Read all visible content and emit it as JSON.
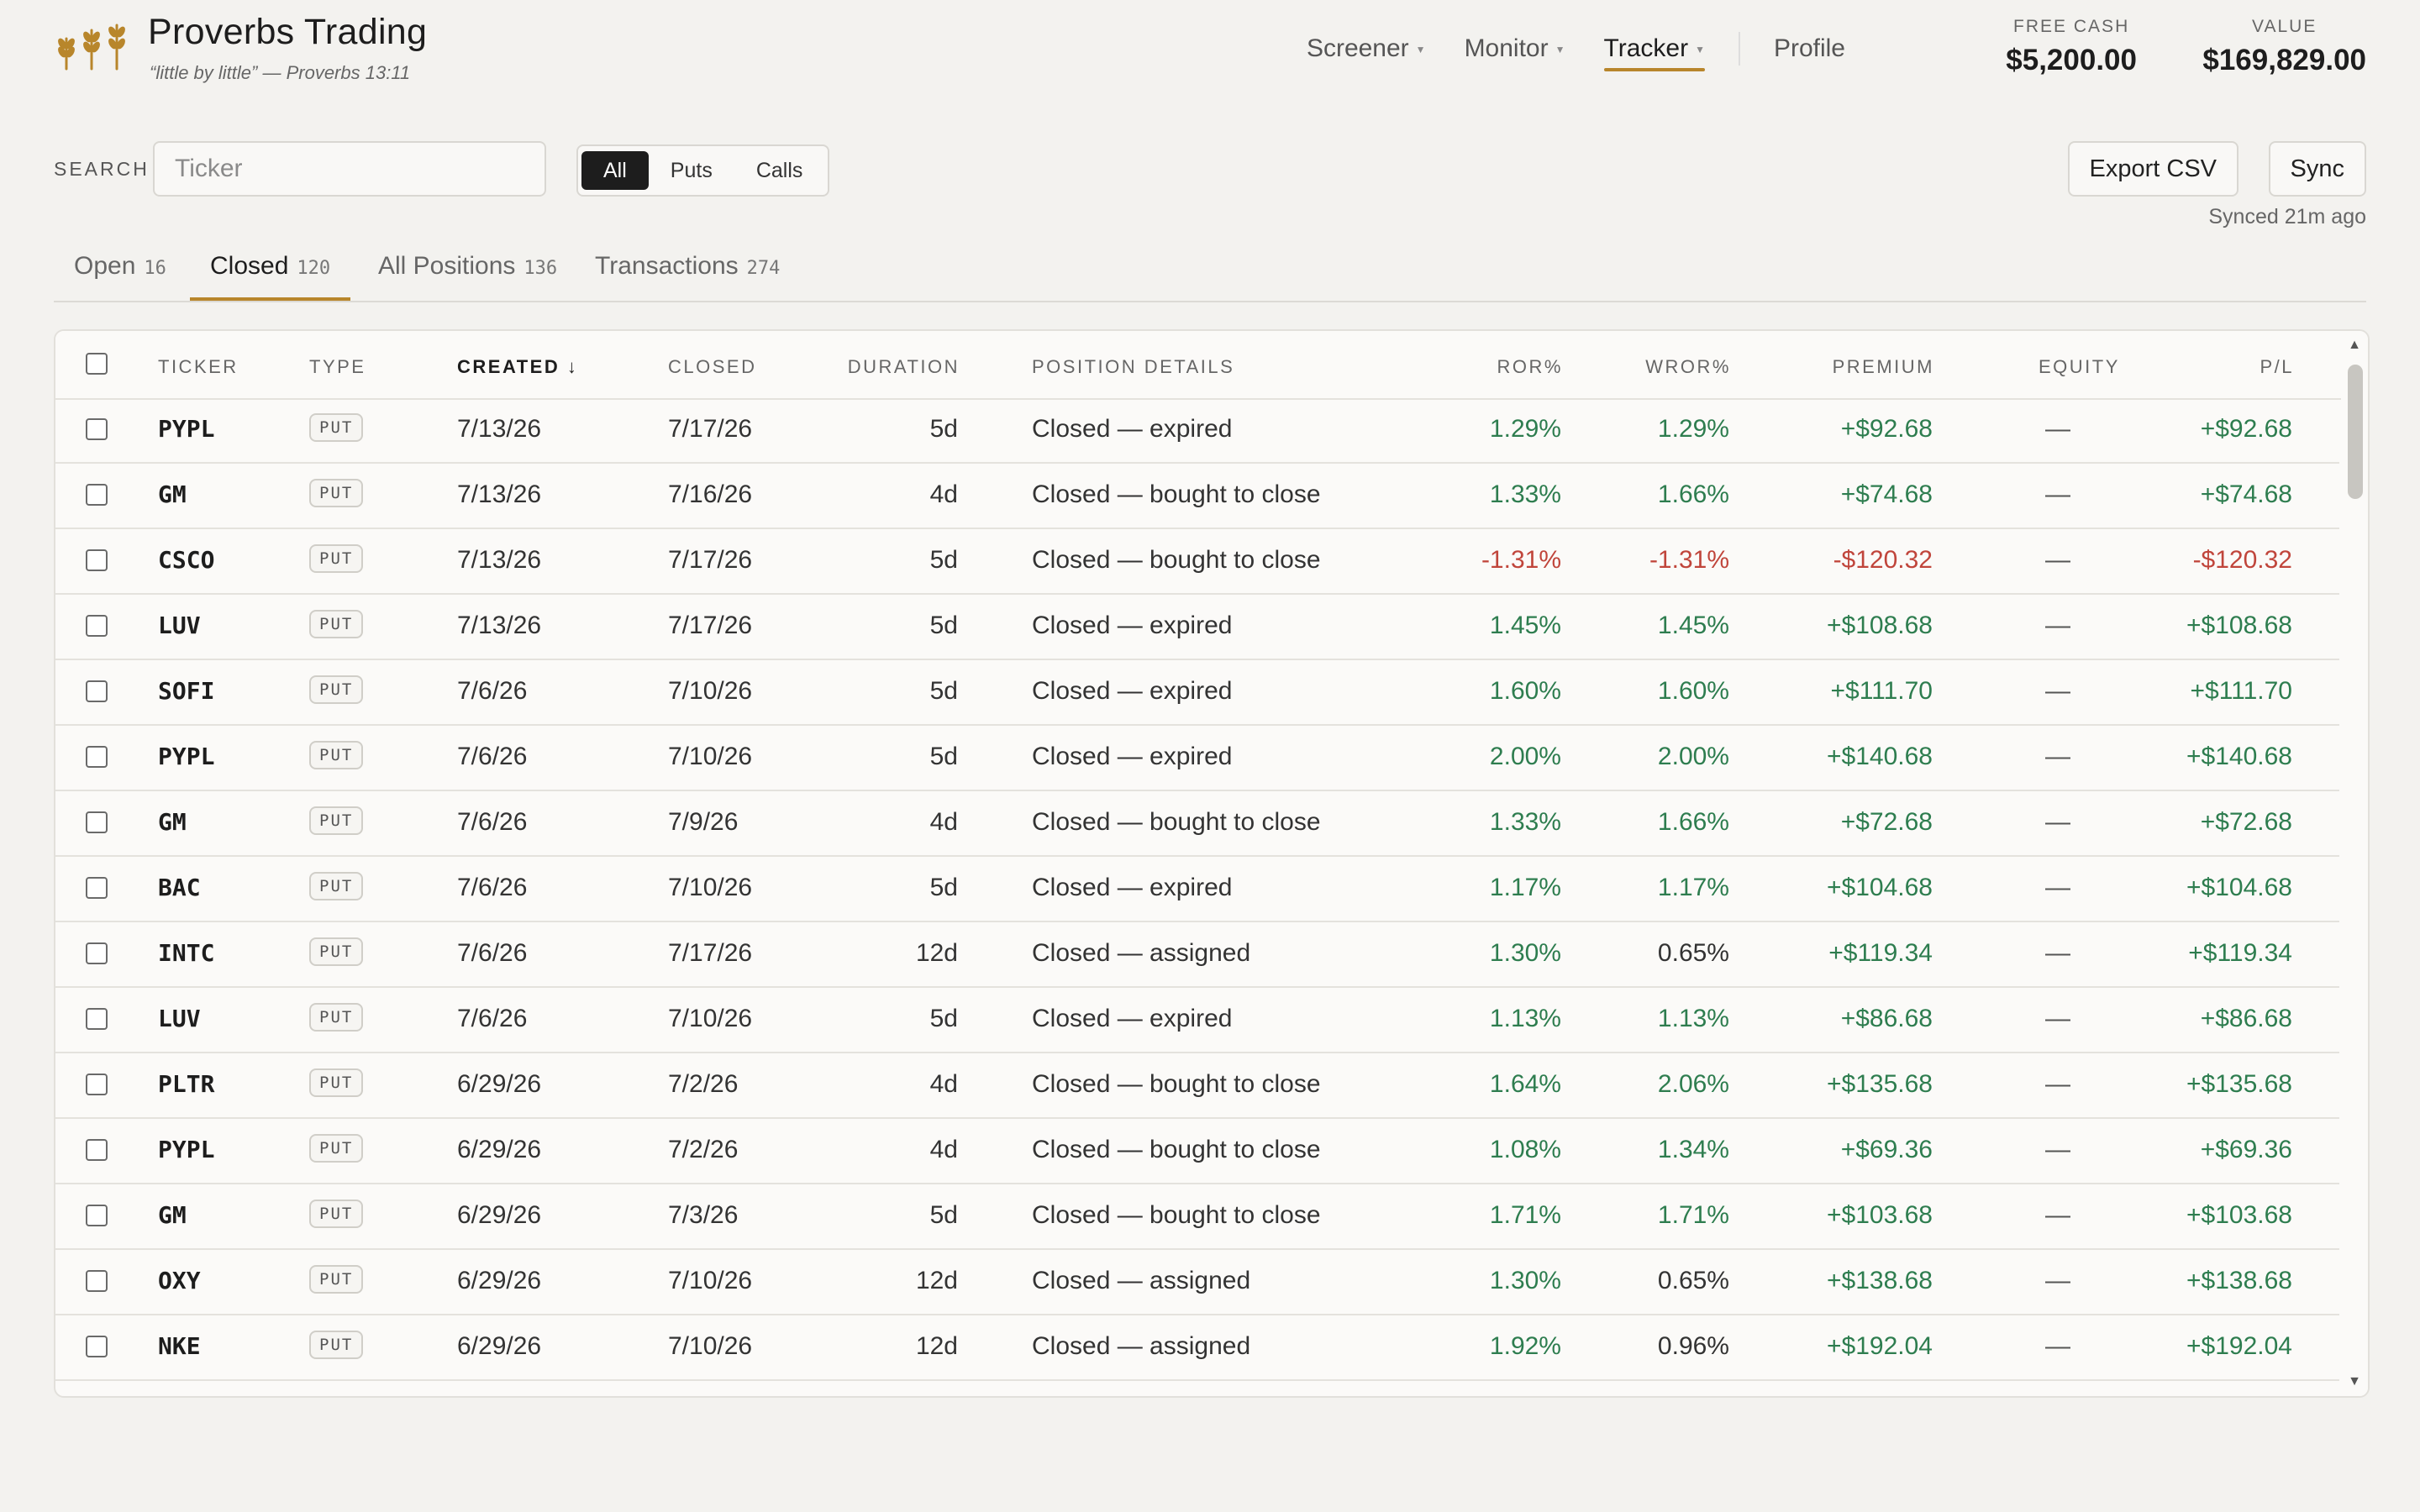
{
  "brand": {
    "title": "Proverbs Trading",
    "subtitle": "“little by little” — Proverbs 13:11"
  },
  "nav": {
    "items": [
      {
        "label": "Screener",
        "active": false
      },
      {
        "label": "Monitor",
        "active": false
      },
      {
        "label": "Tracker",
        "active": true
      }
    ],
    "profile": "Profile"
  },
  "stats": {
    "free_cash_label": "FREE CASH",
    "free_cash": "$5,200.00",
    "value_label": "VALUE",
    "value": "$169,829.00"
  },
  "toolbar": {
    "search_label": "SEARCH",
    "search_placeholder": "Ticker",
    "filters": [
      "All",
      "Puts",
      "Calls"
    ],
    "active_filter": "All",
    "export_label": "Export CSV",
    "sync_label": "Sync",
    "synced_text": "Synced 21m ago"
  },
  "tabs": [
    {
      "label": "Open",
      "count": "16"
    },
    {
      "label": "Closed",
      "count": "120"
    },
    {
      "label": "All Positions",
      "count": "136"
    },
    {
      "label": "Transactions",
      "count": "274"
    }
  ],
  "table": {
    "headers": {
      "ticker": "TICKER",
      "type": "TYPE",
      "created": "CREATED ↓",
      "closed": "CLOSED",
      "duration": "DURATION",
      "details": "POSITION DETAILS",
      "ror": "ROR%",
      "wror": "WROR%",
      "premium": "PREMIUM",
      "equity": "EQUITY",
      "pl": "P/L"
    },
    "rows": [
      {
        "ticker": "PYPL",
        "type": "PUT",
        "created": "7/13/26",
        "closed": "7/17/26",
        "duration": "5d",
        "details": "Closed — expired",
        "ror": "1.29%",
        "wror": "1.29%",
        "premium": "+$92.68",
        "equity": "—",
        "pl": "+$92.68"
      },
      {
        "ticker": "GM",
        "type": "PUT",
        "created": "7/13/26",
        "closed": "7/16/26",
        "duration": "4d",
        "details": "Closed — bought to close",
        "ror": "1.33%",
        "wror": "1.66%",
        "premium": "+$74.68",
        "equity": "—",
        "pl": "+$74.68"
      },
      {
        "ticker": "CSCO",
        "type": "PUT",
        "created": "7/13/26",
        "closed": "7/17/26",
        "duration": "5d",
        "details": "Closed — bought to close",
        "ror": "-1.31%",
        "wror": "-1.31%",
        "premium": "-$120.32",
        "equity": "—",
        "pl": "-$120.32"
      },
      {
        "ticker": "LUV",
        "type": "PUT",
        "created": "7/13/26",
        "closed": "7/17/26",
        "duration": "5d",
        "details": "Closed — expired",
        "ror": "1.45%",
        "wror": "1.45%",
        "premium": "+$108.68",
        "equity": "—",
        "pl": "+$108.68"
      },
      {
        "ticker": "SOFI",
        "type": "PUT",
        "created": "7/6/26",
        "closed": "7/10/26",
        "duration": "5d",
        "details": "Closed — expired",
        "ror": "1.60%",
        "wror": "1.60%",
        "premium": "+$111.70",
        "equity": "—",
        "pl": "+$111.70"
      },
      {
        "ticker": "PYPL",
        "type": "PUT",
        "created": "7/6/26",
        "closed": "7/10/26",
        "duration": "5d",
        "details": "Closed — expired",
        "ror": "2.00%",
        "wror": "2.00%",
        "premium": "+$140.68",
        "equity": "—",
        "pl": "+$140.68"
      },
      {
        "ticker": "GM",
        "type": "PUT",
        "created": "7/6/26",
        "closed": "7/9/26",
        "duration": "4d",
        "details": "Closed — bought to close",
        "ror": "1.33%",
        "wror": "1.66%",
        "premium": "+$72.68",
        "equity": "—",
        "pl": "+$72.68"
      },
      {
        "ticker": "BAC",
        "type": "PUT",
        "created": "7/6/26",
        "closed": "7/10/26",
        "duration": "5d",
        "details": "Closed — expired",
        "ror": "1.17%",
        "wror": "1.17%",
        "premium": "+$104.68",
        "equity": "—",
        "pl": "+$104.68"
      },
      {
        "ticker": "INTC",
        "type": "PUT",
        "created": "7/6/26",
        "closed": "7/17/26",
        "duration": "12d",
        "details": "Closed — assigned",
        "ror": "1.30%",
        "wror": "0.65%",
        "premium": "+$119.34",
        "equity": "—",
        "pl": "+$119.34"
      },
      {
        "ticker": "LUV",
        "type": "PUT",
        "created": "7/6/26",
        "closed": "7/10/26",
        "duration": "5d",
        "details": "Closed — expired",
        "ror": "1.13%",
        "wror": "1.13%",
        "premium": "+$86.68",
        "equity": "—",
        "pl": "+$86.68"
      },
      {
        "ticker": "PLTR",
        "type": "PUT",
        "created": "6/29/26",
        "closed": "7/2/26",
        "duration": "4d",
        "details": "Closed — bought to close",
        "ror": "1.64%",
        "wror": "2.06%",
        "premium": "+$135.68",
        "equity": "—",
        "pl": "+$135.68"
      },
      {
        "ticker": "PYPL",
        "type": "PUT",
        "created": "6/29/26",
        "closed": "7/2/26",
        "duration": "4d",
        "details": "Closed — bought to close",
        "ror": "1.08%",
        "wror": "1.34%",
        "premium": "+$69.36",
        "equity": "—",
        "pl": "+$69.36"
      },
      {
        "ticker": "GM",
        "type": "PUT",
        "created": "6/29/26",
        "closed": "7/3/26",
        "duration": "5d",
        "details": "Closed — bought to close",
        "ror": "1.71%",
        "wror": "1.71%",
        "premium": "+$103.68",
        "equity": "—",
        "pl": "+$103.68"
      },
      {
        "ticker": "OXY",
        "type": "PUT",
        "created": "6/29/26",
        "closed": "7/10/26",
        "duration": "12d",
        "details": "Closed — assigned",
        "ror": "1.30%",
        "wror": "0.65%",
        "premium": "+$138.68",
        "equity": "—",
        "pl": "+$138.68"
      },
      {
        "ticker": "NKE",
        "type": "PUT",
        "created": "6/29/26",
        "closed": "7/10/26",
        "duration": "12d",
        "details": "Closed — assigned",
        "ror": "1.92%",
        "wror": "0.96%",
        "premium": "+$192.04",
        "equity": "—",
        "pl": "+$192.04"
      }
    ]
  },
  "colors": {
    "accent": "#b8862b",
    "positive": "#2e7d4f",
    "negative": "#c0453b",
    "background": "#f3f2ef"
  },
  "icons": {
    "logo": "wheat-stalks-icon",
    "sort": "arrow-down-icon",
    "caret": "caret-down-icon"
  }
}
